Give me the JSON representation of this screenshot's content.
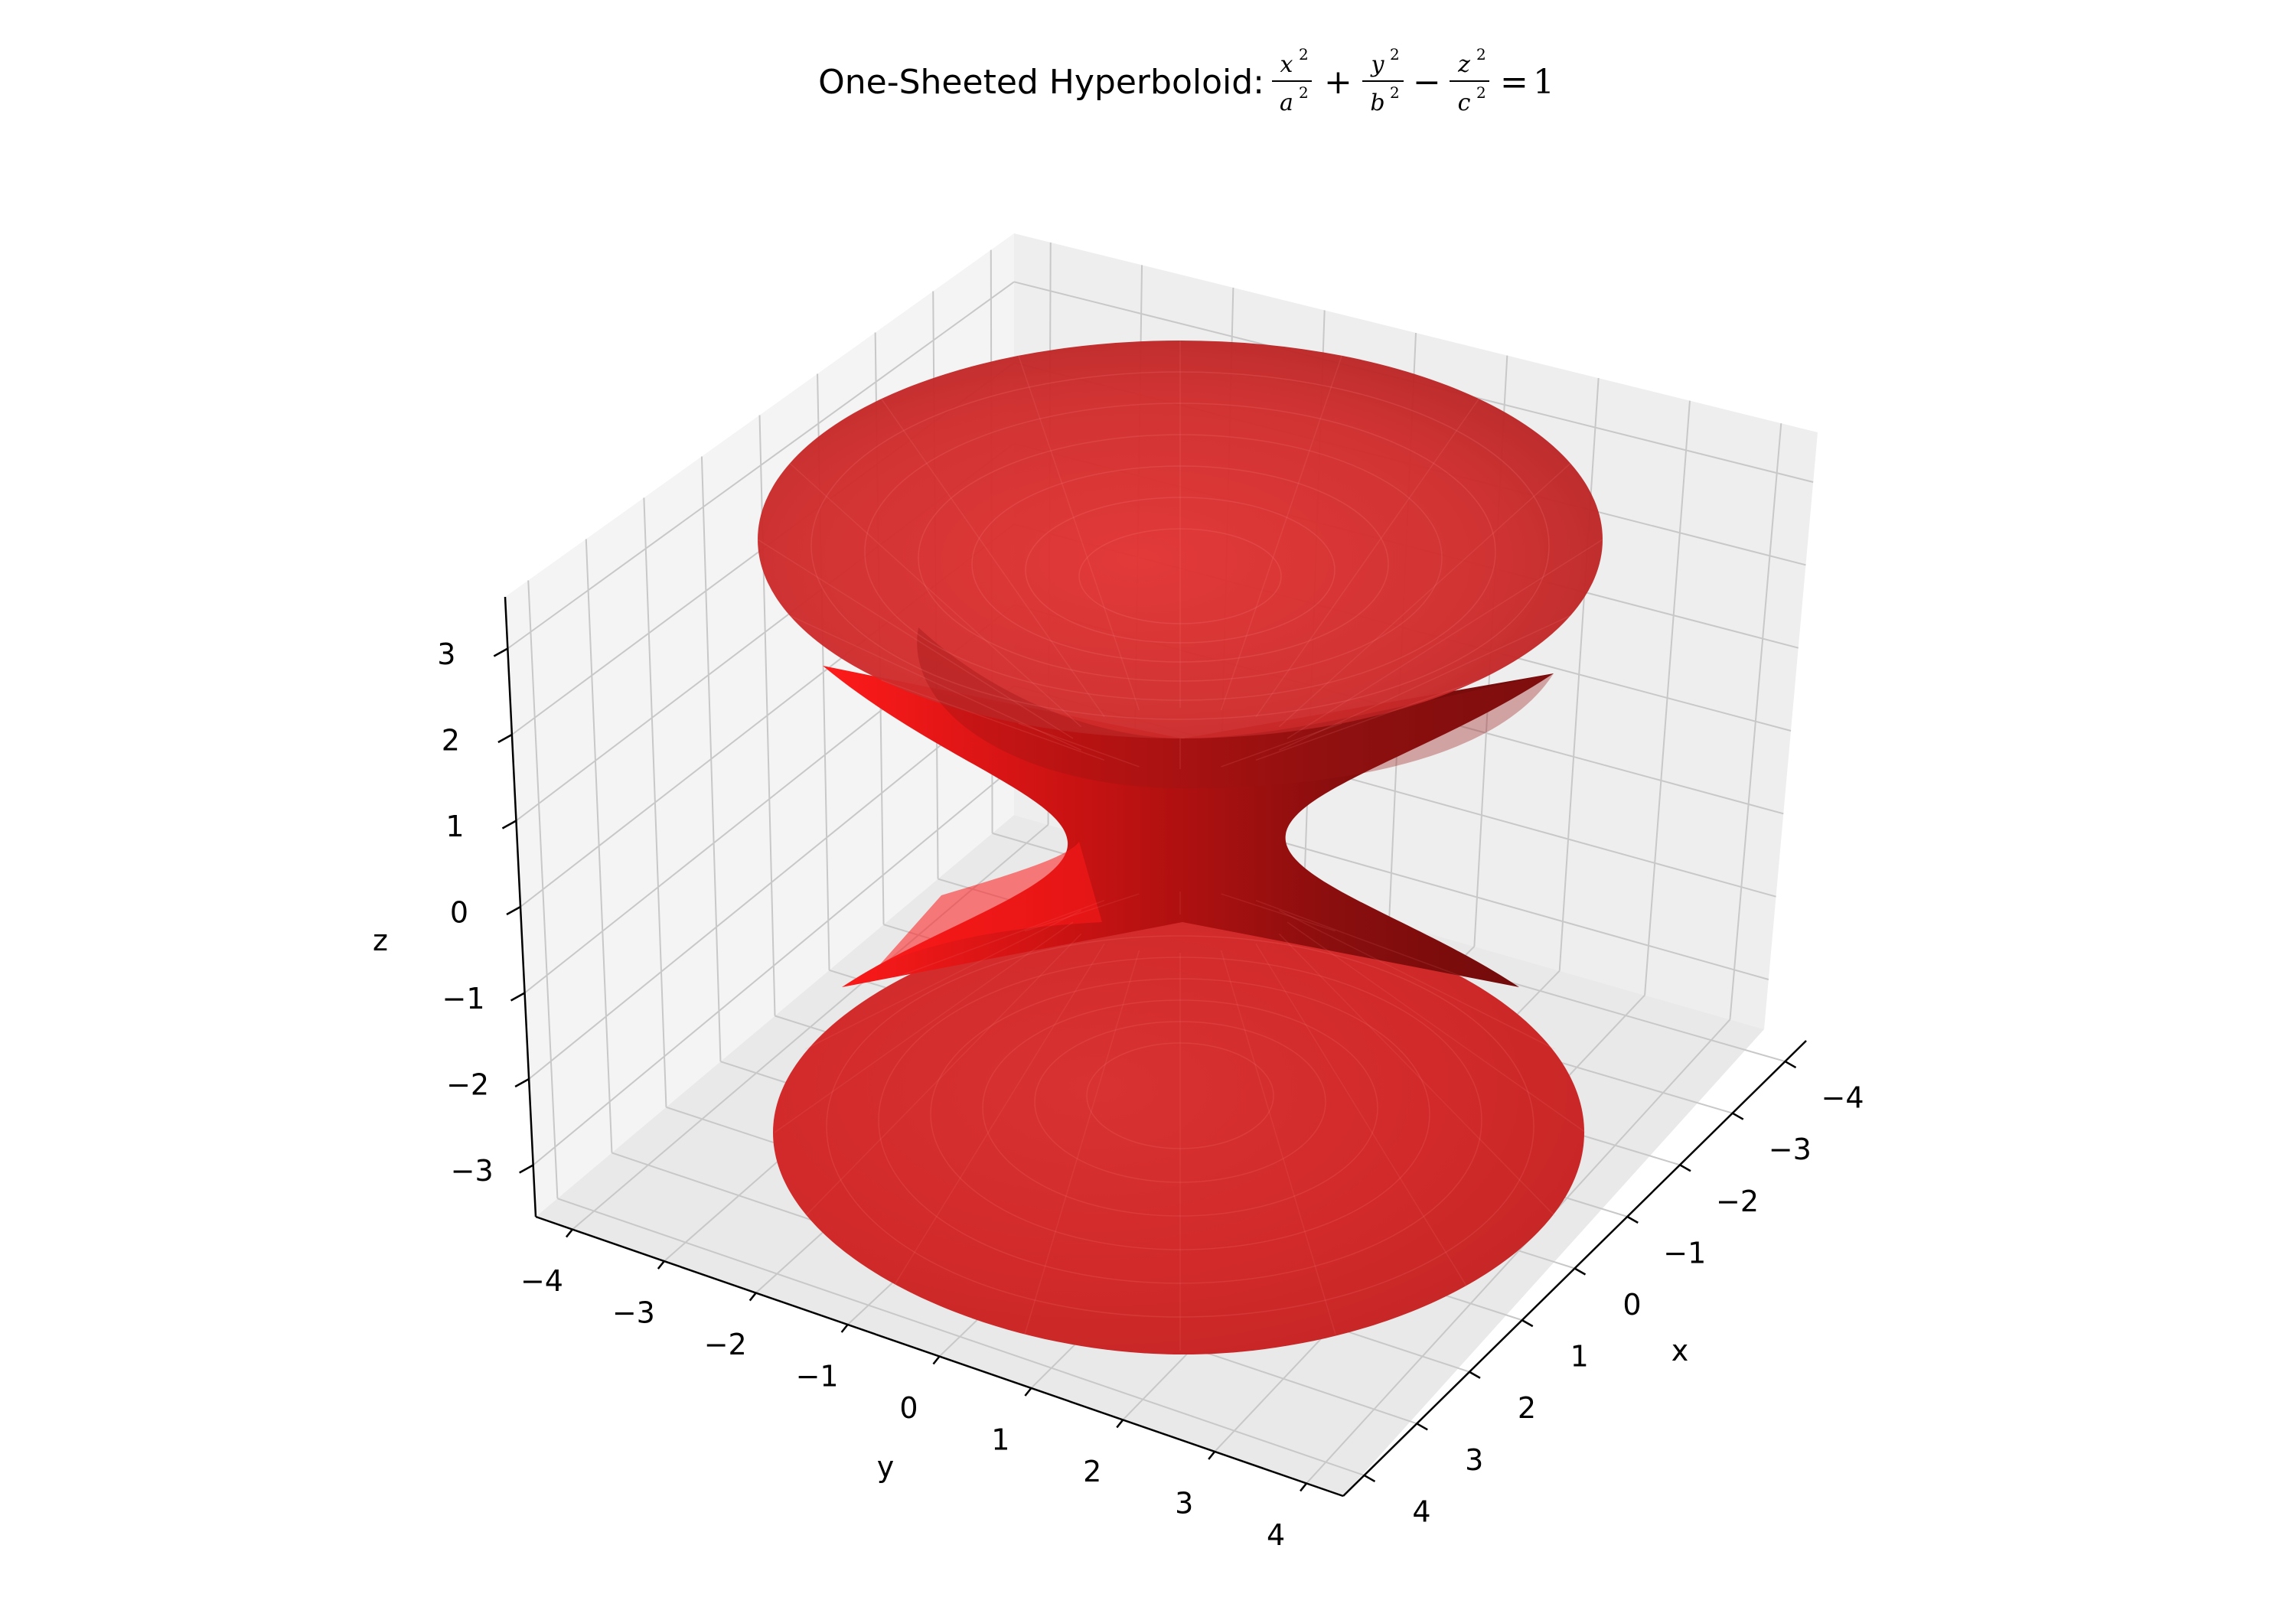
{
  "chart_data": {
    "type": "surface3d",
    "title": {
      "prefix": "One-Sheeted Hyperboloid: ",
      "terms": [
        {
          "num": "x",
          "den": "a"
        },
        {
          "num": "y",
          "den": "b"
        },
        {
          "num": "z",
          "den": "c"
        }
      ],
      "sup": "2",
      "plus": "+",
      "minus": "−",
      "equals": "=",
      "rhs": "1"
    },
    "xlabel": "x",
    "ylabel": "y",
    "zlabel": "z",
    "xlim": [
      -4.4,
      4.4
    ],
    "ylim": [
      -4.4,
      4.4
    ],
    "zlim": [
      -3.6,
      3.6
    ],
    "xticks": [
      "−4",
      "−3",
      "−2",
      "−1",
      "0",
      "1",
      "2",
      "3",
      "4"
    ],
    "yticks": [
      "−4",
      "−3",
      "−2",
      "−1",
      "0",
      "1",
      "2",
      "3",
      "4"
    ],
    "zticks": [
      "−3",
      "−2",
      "−1",
      "0",
      "1",
      "2",
      "3"
    ],
    "surface": {
      "a": 1,
      "b": 1,
      "c": 1,
      "z_range": [
        -3,
        3
      ],
      "top_rim_radius": 3.16,
      "bottom_rim_radius": 3.16,
      "waist_radius": 1,
      "color": "#d62728"
    },
    "colors": {
      "surface_fill": "#dd2a2a",
      "surface_dark": "#7a0d0d",
      "surface_bright": "#ff1a1a",
      "pane": "#f2f2f2",
      "grid": "#c8c8c8",
      "axis": "#000000"
    },
    "grid": true
  }
}
